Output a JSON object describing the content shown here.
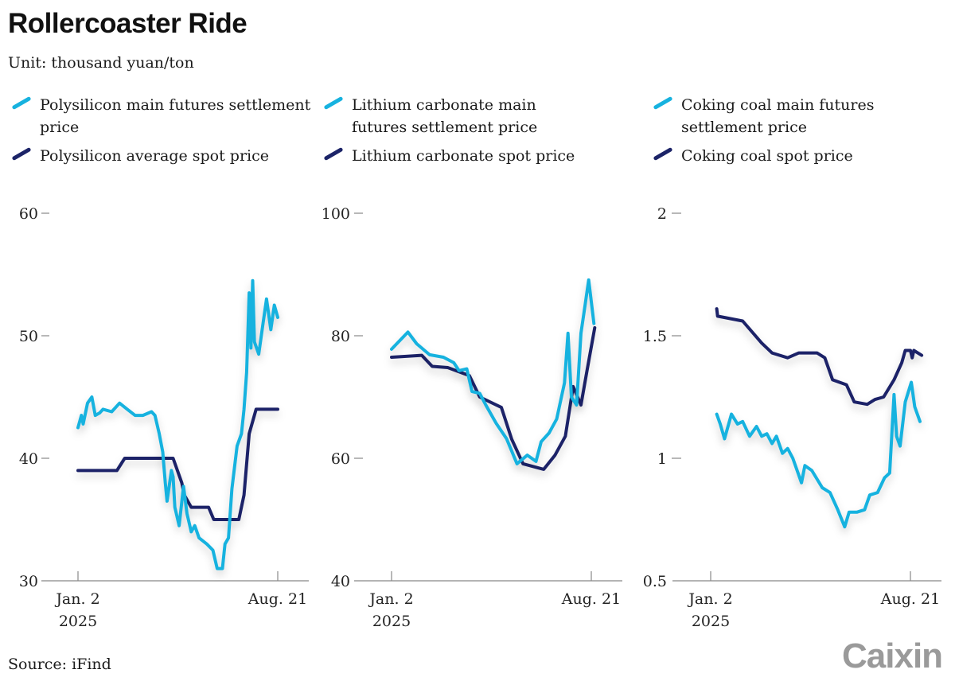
{
  "title": "Rollercoaster Ride",
  "unit": "Unit: thousand yuan/ton",
  "source": "Source: iFind",
  "logo": "Caixin",
  "colors": {
    "futures": "#17b2df",
    "spot": "#1c2468",
    "axis": "#888888",
    "logo": "#9a9a9a"
  },
  "chart_data": [
    {
      "type": "line",
      "legend": [
        "Polysilicon main futures settlement price",
        "Polysilicon average spot price"
      ],
      "x_unit": "days since Jan. 2, 2025",
      "xticks": [
        {
          "day": 0,
          "label": "Jan. 2",
          "sub": "2025"
        },
        {
          "day": 231,
          "label": "Aug. 21",
          "sub": ""
        }
      ],
      "ylim": [
        30,
        60
      ],
      "yticks": [
        30,
        40,
        50,
        60
      ],
      "series": [
        {
          "name": "Polysilicon main futures settlement price",
          "color": "futures",
          "points": [
            [
              0,
              42.5
            ],
            [
              4,
              43.5
            ],
            [
              6,
              42.8
            ],
            [
              11,
              44.5
            ],
            [
              16,
              45
            ],
            [
              20,
              43.5
            ],
            [
              25,
              43.7
            ],
            [
              29,
              44
            ],
            [
              39,
              43.8
            ],
            [
              48,
              44.5
            ],
            [
              57,
              44
            ],
            [
              66,
              43.5
            ],
            [
              75,
              43.5
            ],
            [
              85,
              43.8
            ],
            [
              89,
              43.5
            ],
            [
              94,
              42
            ],
            [
              98,
              40.5
            ],
            [
              101,
              38
            ],
            [
              103,
              36.5
            ],
            [
              108,
              39
            ],
            [
              110,
              38.5
            ],
            [
              112,
              36
            ],
            [
              117,
              34.5
            ],
            [
              122,
              37.7
            ],
            [
              126,
              35.5
            ],
            [
              131,
              34
            ],
            [
              135,
              34.5
            ],
            [
              140,
              33.5
            ],
            [
              149,
              33
            ],
            [
              156,
              32.5
            ],
            [
              161,
              31
            ],
            [
              167,
              31
            ],
            [
              170,
              33
            ],
            [
              174,
              33.5
            ],
            [
              178,
              37.5
            ],
            [
              184,
              41
            ],
            [
              189,
              42
            ],
            [
              192,
              44
            ],
            [
              195,
              47
            ],
            [
              198,
              53.5
            ],
            [
              200,
              49
            ],
            [
              202,
              54.5
            ],
            [
              204,
              49.5
            ],
            [
              209,
              48.5
            ],
            [
              214,
              51
            ],
            [
              218,
              53
            ],
            [
              223,
              50.5
            ],
            [
              227,
              52.5
            ],
            [
              231,
              51.5
            ]
          ]
        },
        {
          "name": "Polysilicon average spot price",
          "color": "spot",
          "points": [
            [
              0,
              39
            ],
            [
              45,
              39
            ],
            [
              54,
              40
            ],
            [
              110,
              40
            ],
            [
              120,
              38
            ],
            [
              123,
              37
            ],
            [
              131,
              36
            ],
            [
              151,
              36
            ],
            [
              157,
              35
            ],
            [
              186,
              35
            ],
            [
              192,
              37
            ],
            [
              198,
              42
            ],
            [
              206,
              44
            ],
            [
              231,
              44
            ]
          ]
        }
      ]
    },
    {
      "type": "line",
      "legend": [
        "Lithium carbonate main futures settlement price",
        "Lithium carbonate spot price"
      ],
      "x_unit": "days since Jan. 2, 2025",
      "xticks": [
        {
          "day": 0,
          "label": "Jan. 2",
          "sub": "2025"
        },
        {
          "day": 231,
          "label": "Aug. 21",
          "sub": ""
        }
      ],
      "ylim": [
        40,
        100
      ],
      "yticks": [
        40,
        60,
        80,
        100
      ],
      "series": [
        {
          "name": "Lithium carbonate main futures settlement price",
          "color": "futures",
          "points": [
            [
              0,
              77.8
            ],
            [
              19,
              80.6
            ],
            [
              29,
              78.7
            ],
            [
              44,
              76.9
            ],
            [
              60,
              76.5
            ],
            [
              72,
              75.6
            ],
            [
              78,
              74.3
            ],
            [
              87,
              74.6
            ],
            [
              93,
              70.9
            ],
            [
              102,
              70.6
            ],
            [
              109,
              68.7
            ],
            [
              121,
              65.7
            ],
            [
              133,
              63.2
            ],
            [
              145,
              59.1
            ],
            [
              157,
              60.5
            ],
            [
              167,
              59.5
            ],
            [
              173,
              62.7
            ],
            [
              182,
              64.1
            ],
            [
              191,
              66.4
            ],
            [
              200,
              72.3
            ],
            [
              204,
              80.4
            ],
            [
              208,
              70
            ],
            [
              214,
              68.7
            ],
            [
              219,
              80.4
            ],
            [
              224,
              85.2
            ],
            [
              228,
              89.1
            ],
            [
              234,
              82
            ]
          ]
        },
        {
          "name": "Lithium carbonate spot price",
          "color": "spot",
          "points": [
            [
              0,
              76.5
            ],
            [
              35,
              76.8
            ],
            [
              47,
              75
            ],
            [
              65,
              74.8
            ],
            [
              90,
              73.5
            ],
            [
              102,
              70
            ],
            [
              127,
              68.3
            ],
            [
              139,
              63.1
            ],
            [
              152,
              59.1
            ],
            [
              176,
              58.2
            ],
            [
              189,
              60.5
            ],
            [
              201,
              63.6
            ],
            [
              210,
              71.7
            ],
            [
              219,
              68.7
            ],
            [
              226,
              74.3
            ],
            [
              235,
              81.3
            ]
          ]
        }
      ]
    },
    {
      "type": "line",
      "legend": [
        "Coking coal main futures settlement price",
        "Coking coal spot price"
      ],
      "x_unit": "days since Jan. 2, 2025",
      "xticks": [
        {
          "day": 0,
          "label": "Jan. 2",
          "sub": "2025"
        },
        {
          "day": 231,
          "label": "Aug. 21",
          "sub": ""
        }
      ],
      "ylim": [
        0.5,
        2
      ],
      "yticks": [
        0.5,
        1,
        1.5,
        2
      ],
      "ytick_labels": [
        "0.5",
        "1",
        "1.5",
        "2"
      ],
      "series": [
        {
          "name": "Coking coal main futures settlement price",
          "color": "futures",
          "points": [
            [
              7,
              1.18
            ],
            [
              11,
              1.14
            ],
            [
              16,
              1.08
            ],
            [
              24,
              1.18
            ],
            [
              31,
              1.14
            ],
            [
              37,
              1.15
            ],
            [
              45,
              1.09
            ],
            [
              53,
              1.13
            ],
            [
              59,
              1.09
            ],
            [
              65,
              1.1
            ],
            [
              71,
              1.06
            ],
            [
              76,
              1.09
            ],
            [
              83,
              1.02
            ],
            [
              89,
              1.04
            ],
            [
              95,
              1.0
            ],
            [
              105,
              0.9
            ],
            [
              109,
              0.97
            ],
            [
              117,
              0.95
            ],
            [
              129,
              0.88
            ],
            [
              138,
              0.86
            ],
            [
              147,
              0.79
            ],
            [
              155,
              0.72
            ],
            [
              160,
              0.78
            ],
            [
              169,
              0.78
            ],
            [
              178,
              0.79
            ],
            [
              184,
              0.85
            ],
            [
              193,
              0.86
            ],
            [
              201,
              0.92
            ],
            [
              207,
              0.94
            ],
            [
              212,
              1.26
            ],
            [
              215,
              1.09
            ],
            [
              219,
              1.05
            ],
            [
              225,
              1.23
            ],
            [
              232,
              1.31
            ],
            [
              236,
              1.21
            ],
            [
              239,
              1.18
            ],
            [
              242,
              1.15
            ]
          ]
        },
        {
          "name": "Coking coal spot price",
          "color": "spot",
          "points": [
            [
              7,
              1.61
            ],
            [
              8,
              1.58
            ],
            [
              37,
              1.56
            ],
            [
              59,
              1.47
            ],
            [
              71,
              1.43
            ],
            [
              89,
              1.41
            ],
            [
              102,
              1.43
            ],
            [
              123,
              1.43
            ],
            [
              132,
              1.41
            ],
            [
              141,
              1.32
            ],
            [
              157,
              1.3
            ],
            [
              166,
              1.23
            ],
            [
              181,
              1.22
            ],
            [
              190,
              1.24
            ],
            [
              200,
              1.25
            ],
            [
              212,
              1.32
            ],
            [
              221,
              1.39
            ],
            [
              225,
              1.44
            ],
            [
              231,
              1.44
            ],
            [
              233,
              1.41
            ],
            [
              235,
              1.44
            ],
            [
              244,
              1.42
            ]
          ]
        }
      ]
    }
  ]
}
